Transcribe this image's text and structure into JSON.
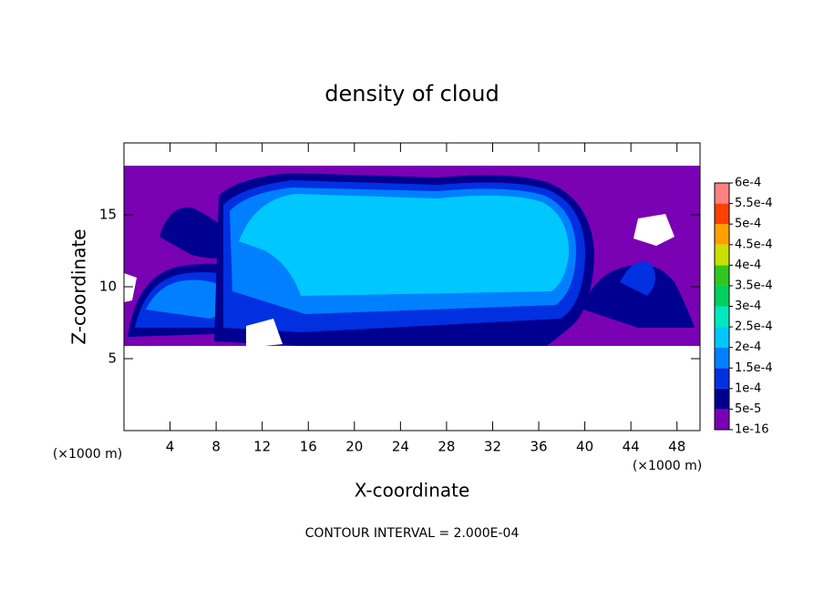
{
  "chart_data": {
    "type": "contour",
    "title": "density of cloud",
    "x_label": "X-coordinate",
    "y_label": "Z-coordinate",
    "x_unit": "(×1000 m)",
    "y_unit": "(×1000 m)",
    "footer": "CONTOUR INTERVAL = 2.000E-04",
    "xlim": [
      0,
      50
    ],
    "xticks": [
      4,
      8,
      12,
      16,
      20,
      24,
      28,
      32,
      36,
      40,
      44,
      48
    ],
    "ylim": [
      0,
      20
    ],
    "yticks": [
      5,
      10,
      15
    ],
    "colorbar": {
      "ticks": [
        {
          "value": 1e-16,
          "label": "1e-16"
        },
        {
          "value": 5e-05,
          "label": "5e-5"
        },
        {
          "value": 0.0001,
          "label": "1e-4"
        },
        {
          "value": 0.00015,
          "label": "1.5e-4"
        },
        {
          "value": 0.0002,
          "label": "2e-4"
        },
        {
          "value": 0.00025,
          "label": "2.5e-4"
        },
        {
          "value": 0.0003,
          "label": "3e-4"
        },
        {
          "value": 0.00035,
          "label": "3.5e-4"
        },
        {
          "value": 0.0004,
          "label": "4e-4"
        },
        {
          "value": 0.00045,
          "label": "4.5e-4"
        },
        {
          "value": 0.0005,
          "label": "5e-4"
        },
        {
          "value": 0.00055,
          "label": "5.5e-4"
        },
        {
          "value": 0.0006,
          "label": "6e-4"
        }
      ],
      "colors": [
        "#7a00b4",
        "#000090",
        "#0030e0",
        "#0080ff",
        "#00c8ff",
        "#00e8c0",
        "#00d060",
        "#30c820",
        "#c8e000",
        "#ffa000",
        "#ff4000",
        "#ff8080"
      ]
    }
  }
}
